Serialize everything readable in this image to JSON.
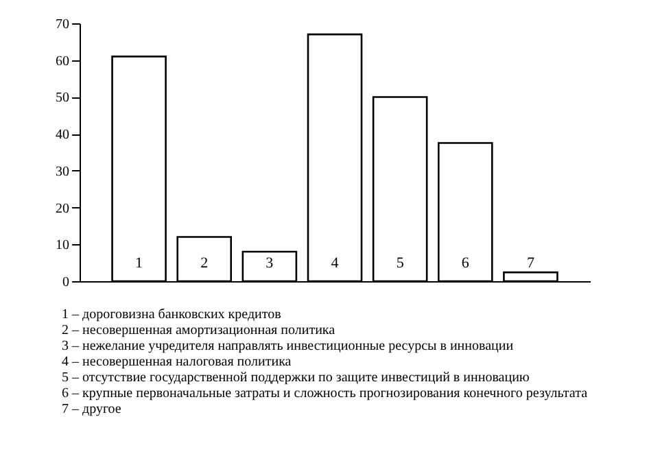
{
  "chart_data": {
    "type": "bar",
    "categories": [
      "1",
      "2",
      "3",
      "4",
      "5",
      "6",
      "7"
    ],
    "values": [
      61,
      12,
      8,
      67,
      50,
      37.5,
      2.4
    ],
    "color": "#ffffff",
    "ylim": [
      0,
      70
    ],
    "yticks": [
      0,
      10,
      20,
      30,
      40,
      50,
      60,
      70
    ],
    "grid": false,
    "annotations": [
      "1 – дороговизна банковских кредитов",
      "2 – несовершенная амортизационная политика",
      "3 – нежелание учредителя направлять инвестиционные ресурсы в инновации",
      "4 – несовершенная налоговая политика",
      "5 – отсутствие  государственной поддержки по защите инвестиций в инновацию",
      "6 – крупные первоначальные затраты и сложность прогнозирования конечного результата",
      "7 – другое"
    ]
  }
}
